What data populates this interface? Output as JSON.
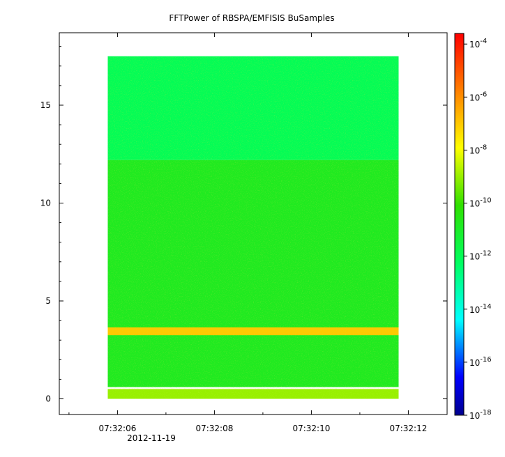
{
  "chart_data": {
    "type": "heatmap",
    "title": "FFTPower of RBSPA/EMFISIS  BuSamples",
    "xlabel": "",
    "ylabel": "",
    "x_ticks": [
      "07:32:06",
      "07:32:08",
      "07:32:10",
      "07:32:12"
    ],
    "x_date_label": "2012-11-19",
    "x_range_seconds": [
      4.8,
      12.8
    ],
    "x_tick_seconds": [
      6,
      8,
      10,
      12
    ],
    "data_x_range_seconds": [
      5.8,
      11.8
    ],
    "y_ticks": [
      "0",
      "5",
      "10",
      "15"
    ],
    "y_tick_values": [
      0,
      5,
      10,
      15
    ],
    "y_range": [
      -0.8,
      18.7
    ],
    "data_y_range": [
      0,
      17.5
    ],
    "colorbar": {
      "scale": "log",
      "range_exponent": [
        -18,
        -3.6
      ],
      "tick_exponents": [
        -18,
        -16,
        -14,
        -12,
        -10,
        -8,
        -6,
        -4
      ],
      "tick_labels": [
        {
          "base": "10",
          "exp": "-18"
        },
        {
          "base": "10",
          "exp": "-16"
        },
        {
          "base": "10",
          "exp": "-14"
        },
        {
          "base": "10",
          "exp": "-12"
        },
        {
          "base": "10",
          "exp": "-10"
        },
        {
          "base": "10",
          "exp": "-8"
        },
        {
          "base": "10",
          "exp": "-6"
        },
        {
          "base": "10",
          "exp": "-4"
        }
      ],
      "colormap": "rainbow"
    },
    "bands": [
      {
        "y_range": [
          12.2,
          17.5
        ],
        "log_power": -12.0
      },
      {
        "y_range": [
          0.6,
          12.2
        ],
        "log_power": -10.8
      },
      {
        "y_range": [
          3.25,
          3.65
        ],
        "log_power": -7.0
      },
      {
        "y_range": [
          0,
          0.5
        ],
        "log_power": -9.0
      }
    ]
  }
}
